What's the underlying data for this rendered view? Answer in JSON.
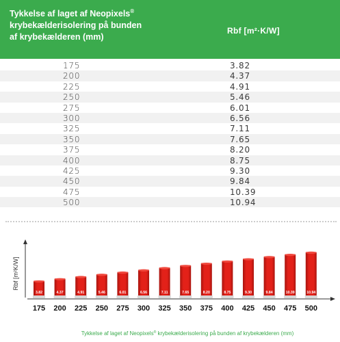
{
  "table": {
    "header_left": "Tykkelse af laget af Neopixels",
    "header_left_mark": "®",
    "header_left_line2": "krybekælderisolering på bunden",
    "header_left_line3": "af krybekælderen (mm)",
    "header_right": "Rbf [m²·K/W]",
    "rows": [
      {
        "thickness": "175",
        "rbf": "3.82"
      },
      {
        "thickness": "200",
        "rbf": "4.37"
      },
      {
        "thickness": "225",
        "rbf": "4.91"
      },
      {
        "thickness": "250",
        "rbf": "5.46"
      },
      {
        "thickness": "275",
        "rbf": "6.01"
      },
      {
        "thickness": "300",
        "rbf": "6.56"
      },
      {
        "thickness": "325",
        "rbf": "7.11"
      },
      {
        "thickness": "350",
        "rbf": "7.65"
      },
      {
        "thickness": "375",
        "rbf": "8.20"
      },
      {
        "thickness": "400",
        "rbf": "8.75"
      },
      {
        "thickness": "425",
        "rbf": "9.30"
      },
      {
        "thickness": "450",
        "rbf": "9.84"
      },
      {
        "thickness": "475",
        "rbf": "10.39"
      },
      {
        "thickness": "500",
        "rbf": "10.94"
      }
    ]
  },
  "colors": {
    "header_green": "#3bab4d",
    "bar_red": "#e32119",
    "bar_dark": "#a8140e",
    "xlabel_green": "#3bab4d"
  },
  "chart_data": {
    "type": "bar",
    "categories": [
      "175",
      "200",
      "225",
      "250",
      "275",
      "300",
      "325",
      "350",
      "375",
      "400",
      "425",
      "450",
      "475",
      "500"
    ],
    "values": [
      3.82,
      4.37,
      4.91,
      5.46,
      6.01,
      6.56,
      7.11,
      7.65,
      8.2,
      8.75,
      9.3,
      9.84,
      10.39,
      10.94
    ],
    "value_labels": [
      "3.82",
      "4.37",
      "4.91",
      "5.46",
      "6.01",
      "6.56",
      "7.11",
      "7.65",
      "8.20",
      "8.75",
      "9.30",
      "9.84",
      "10.39",
      "10.94"
    ],
    "ylabel": "Rbf [m²K/W]",
    "xlabel": "Tykkelse af laget af Neopixels",
    "xlabel_mark": "®",
    "xlabel_rest": " krybekælderisolering på bunden af krybekælderen (mm)",
    "ylim": [
      0,
      11
    ],
    "grid": false
  }
}
